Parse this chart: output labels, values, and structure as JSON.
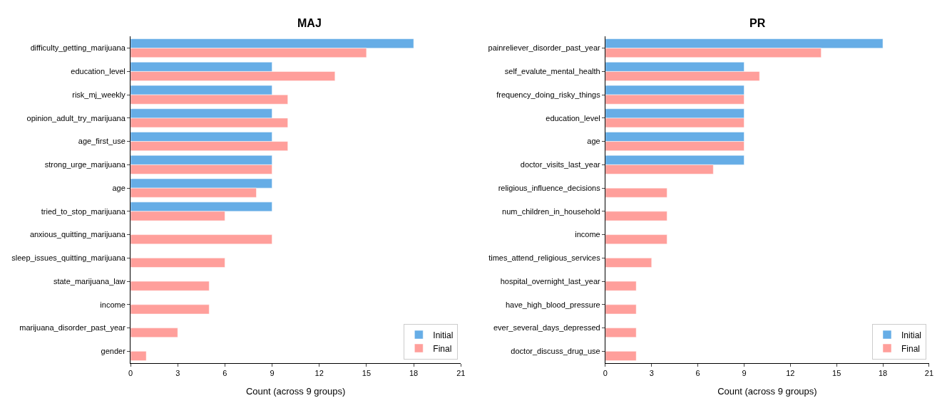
{
  "chart_data": [
    {
      "type": "bar",
      "orientation": "horizontal",
      "title": "MAJ",
      "xlabel": "Count (across 9 groups)",
      "categories": [
        "difficulty_getting_marijuana",
        "education_level",
        "risk_mj_weekly",
        "opinion_adult_try_marijuana",
        "age_first_use",
        "strong_urge_marijuana",
        "age",
        "tried_to_stop_marijuana",
        "anxious_quitting_marijuana",
        "sleep_issues_quitting_marijuana",
        "state_marijuana_law",
        "income",
        "marijuana_disorder_past_year",
        "gender"
      ],
      "series": [
        {
          "name": "Initial",
          "color": "#66ade6",
          "values": [
            18,
            9,
            9,
            9,
            9,
            9,
            9,
            9,
            null,
            null,
            null,
            null,
            null,
            null
          ]
        },
        {
          "name": "Final",
          "color": "#ff9f9b",
          "values": [
            15,
            13,
            10,
            10,
            10,
            9,
            8,
            6,
            9,
            6,
            5,
            5,
            3,
            1
          ]
        }
      ],
      "xlim": [
        0,
        21
      ],
      "xticks": [
        0,
        3,
        6,
        9,
        12,
        15,
        18,
        21
      ],
      "legend": "bottom right"
    },
    {
      "type": "bar",
      "orientation": "horizontal",
      "title": "PR",
      "xlabel": "Count (across 9 groups)",
      "categories": [
        "painreliever_disorder_past_year",
        "self_evalute_mental_health",
        "frequency_doing_risky_things",
        "education_level",
        "age",
        "doctor_visits_last_year",
        "religious_influence_decisions",
        "num_children_in_household",
        "income",
        "times_attend_religious_services",
        "hospital_overnight_last_year",
        "have_high_blood_pressure",
        "ever_several_days_depressed",
        "doctor_discuss_drug_use"
      ],
      "series": [
        {
          "name": "Initial",
          "color": "#66ade6",
          "values": [
            18,
            9,
            9,
            9,
            9,
            9,
            null,
            null,
            null,
            null,
            null,
            null,
            null,
            null
          ]
        },
        {
          "name": "Final",
          "color": "#ff9f9b",
          "values": [
            14,
            10,
            9,
            9,
            9,
            7,
            4,
            4,
            4,
            3,
            2,
            2,
            2,
            2
          ]
        }
      ],
      "xlim": [
        0,
        21
      ],
      "xticks": [
        0,
        3,
        6,
        9,
        12,
        15,
        18,
        21
      ],
      "legend": "bottom right"
    }
  ]
}
